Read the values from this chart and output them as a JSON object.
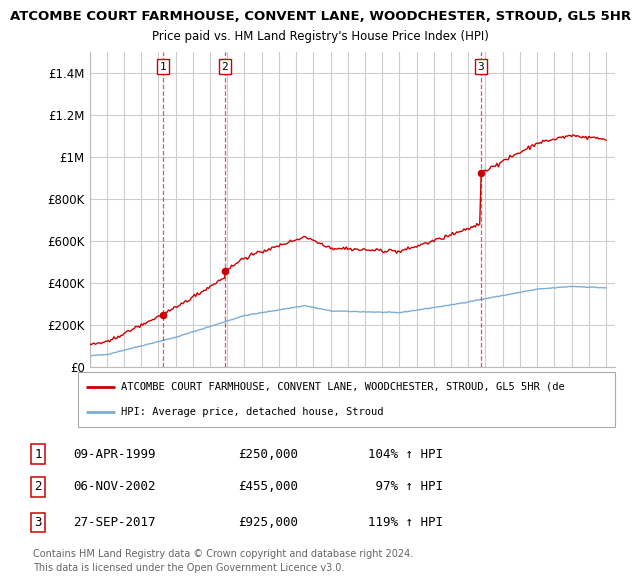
{
  "title1": "ATCOMBE COURT FARMHOUSE, CONVENT LANE, WOODCHESTER, STROUD, GL5 5HR",
  "title2": "Price paid vs. HM Land Registry's House Price Index (HPI)",
  "ylim": [
    0,
    1500000
  ],
  "yticks": [
    0,
    200000,
    400000,
    600000,
    800000,
    1000000,
    1200000,
    1400000
  ],
  "ytick_labels": [
    "£0",
    "£200K",
    "£400K",
    "£600K",
    "£800K",
    "£1M",
    "£1.2M",
    "£1.4M"
  ],
  "sale_dates": [
    1999.27,
    2002.85,
    2017.74
  ],
  "sale_prices": [
    250000,
    455000,
    925000
  ],
  "sale_labels": [
    "1",
    "2",
    "3"
  ],
  "legend_red": "ATCOMBE COURT FARMHOUSE, CONVENT LANE, WOODCHESTER, STROUD, GL5 5HR (de",
  "legend_blue": "HPI: Average price, detached house, Stroud",
  "table_rows": [
    [
      "1",
      "09-APR-1999",
      "£250,000",
      "104% ↑ HPI"
    ],
    [
      "2",
      "06-NOV-2002",
      "£455,000",
      " 97% ↑ HPI"
    ],
    [
      "3",
      "27-SEP-2017",
      "£925,000",
      "119% ↑ HPI"
    ]
  ],
  "footnote1": "Contains HM Land Registry data © Crown copyright and database right 2024.",
  "footnote2": "This data is licensed under the Open Government Licence v3.0.",
  "red_color": "#cc0000",
  "blue_color": "#7aafd4",
  "vline_color": "#cc0000",
  "grid_color": "#cccccc",
  "bg_color": "#ffffff"
}
